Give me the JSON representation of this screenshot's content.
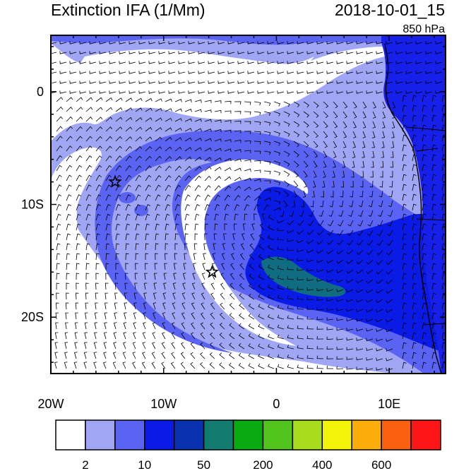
{
  "header": {
    "title": "Extinction IFA (1/Mm)",
    "datetime": "2018-10-01_15",
    "level": "850 hPa"
  },
  "map": {
    "lon_range": [
      -20,
      15
    ],
    "lat_range": [
      -25,
      5
    ],
    "x_ticks": [
      {
        "lon": -20,
        "label": "20W"
      },
      {
        "lon": -10,
        "label": "10W"
      },
      {
        "lon": 0,
        "label": "0"
      },
      {
        "lon": 10,
        "label": "10E"
      }
    ],
    "y_ticks": [
      {
        "lat": 0,
        "label": "0"
      },
      {
        "lat": -10,
        "label": "10S"
      },
      {
        "lat": -20,
        "label": "20S"
      }
    ],
    "markers": [
      {
        "name": "star-marker-1",
        "lon": -14.3,
        "lat": -8.0
      },
      {
        "name": "star-marker-2",
        "lon": -5.7,
        "lat": -16.0
      }
    ],
    "field_colors": {
      "low": "#ffffff",
      "light": "#a0a6f4",
      "medium": "#5a63f2",
      "high": "#0b1be6",
      "very_high": "#0a32b0",
      "peak": "#127a6e",
      "land_high": "#1620e8"
    }
  },
  "colorbar": {
    "colors": [
      "#ffffff",
      "#a0a6f4",
      "#5a63f2",
      "#0b1be6",
      "#0a32b0",
      "#127a6e",
      "#0aab12",
      "#52c41e",
      "#a8dc1c",
      "#f4f40a",
      "#fbae0a",
      "#fa6010",
      "#fc1616"
    ],
    "labels": [
      "2",
      "10",
      "50",
      "200",
      "400",
      "600"
    ]
  }
}
